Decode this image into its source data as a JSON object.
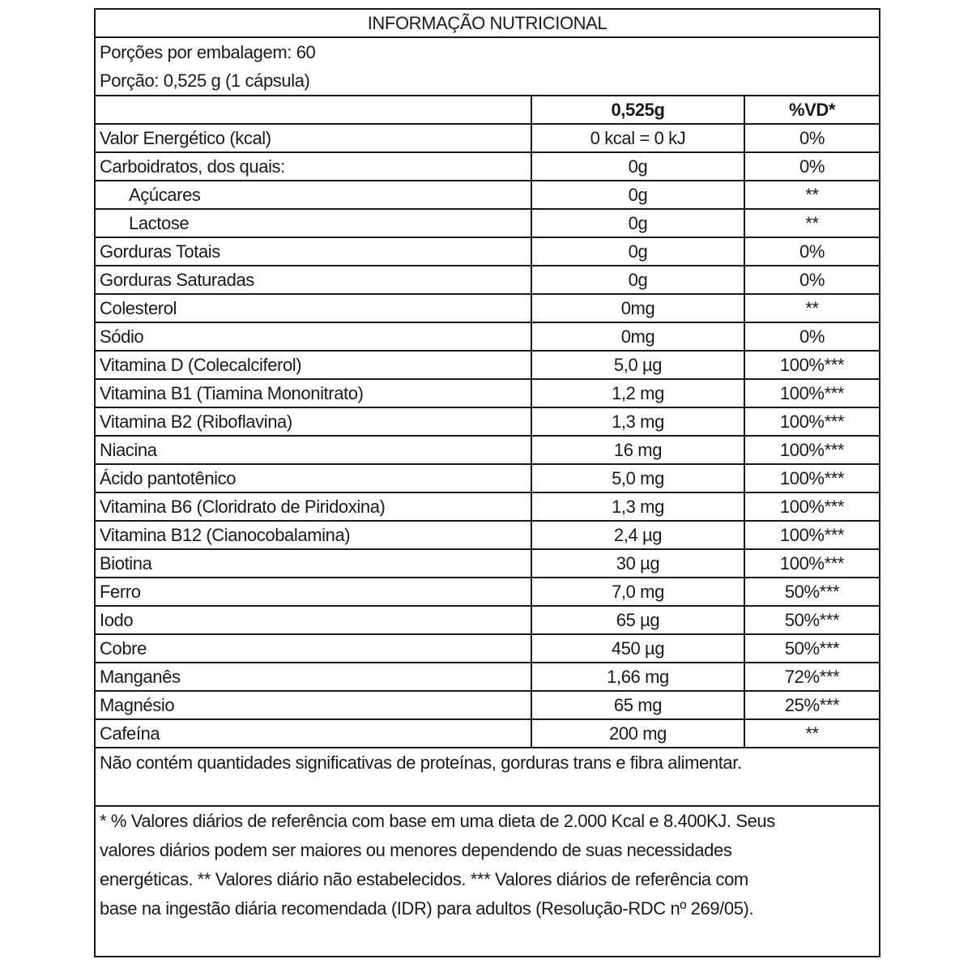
{
  "title": "INFORMAÇÃO NUTRICIONAL",
  "servings_per_package": "Porções por embalagem: 60",
  "serving_size": "Porção: 0,525 g  (1 cápsula)",
  "columns": {
    "amount": "0,525g",
    "dv": "%VD*"
  },
  "rows": [
    {
      "name": "Valor Energético (kcal)",
      "amount": "0 kcal = 0 kJ",
      "dv": "0%"
    },
    {
      "name": "Carboidratos, dos quais:",
      "amount": "0g",
      "dv": "0%"
    },
    {
      "name": "Açúcares",
      "amount": "0g",
      "dv": "**",
      "indent": true
    },
    {
      "name": "Lactose",
      "amount": "0g",
      "dv": "**",
      "indent": true
    },
    {
      "name": "Gorduras Totais",
      "amount": "0g",
      "dv": "0%"
    },
    {
      "name": "Gorduras Saturadas",
      "amount": "0g",
      "dv": "0%"
    },
    {
      "name": "Colesterol",
      "amount": "0mg",
      "dv": "**"
    },
    {
      "name": "Sódio",
      "amount": "0mg",
      "dv": "0%"
    },
    {
      "name": "Vitamina D (Colecalciferol)",
      "amount": "5,0 µg",
      "dv": "100%***"
    },
    {
      "name": "Vitamina B1 (Tiamina Mononitrato)",
      "amount": "1,2 mg",
      "dv": "100%***"
    },
    {
      "name": "Vitamina B2 (Riboflavina)",
      "amount": "1,3 mg",
      "dv": "100%***"
    },
    {
      "name": "Niacina",
      "amount": "16 mg",
      "dv": "100%***"
    },
    {
      "name": "Ácido pantotênico",
      "amount": "5,0 mg",
      "dv": "100%***"
    },
    {
      "name": "Vitamina B6 (Cloridrato de Piridoxina)",
      "amount": "1,3 mg",
      "dv": "100%***"
    },
    {
      "name": "Vitamina B12 (Cianocobalamina)",
      "amount": "2,4 µg",
      "dv": "100%***"
    },
    {
      "name": "Biotina",
      "amount": "30 µg",
      "dv": "100%***"
    },
    {
      "name": "Ferro",
      "amount": "7,0 mg",
      "dv": "50%***"
    },
    {
      "name": "Iodo",
      "amount": "65 µg",
      "dv": "50%***"
    },
    {
      "name": "Cobre",
      "amount": "450 µg",
      "dv": "50%***"
    },
    {
      "name": "Manganês",
      "amount": "1,66 mg",
      "dv": "72%***"
    },
    {
      "name": "Magnésio",
      "amount": "65 mg",
      "dv": "25%***"
    },
    {
      "name": "Cafeína",
      "amount": "200 mg",
      "dv": "**"
    }
  ],
  "note": "Não contém quantidades significativas de proteínas, gorduras trans e fibra alimentar.",
  "footnote_lines": [
    "* % Valores diários de referência com base em uma dieta de 2.000 Kcal e 8.400KJ. Seus",
    "valores diários podem ser maiores ou menores dependendo de suas necessidades",
    "energéticas. ** Valores diário não estabelecidos. *** Valores diários de referência com",
    "base na ingestão diária recomendada (IDR) para adultos (Resolução-RDC nº 269/05)."
  ]
}
